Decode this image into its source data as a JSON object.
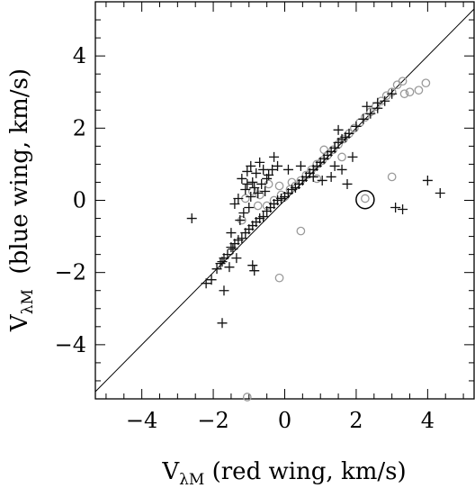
{
  "chart_data": {
    "type": "scatter",
    "xlabel": {
      "main": "V",
      "sub": "λM",
      "rest": " (red wing, km/s)"
    },
    "ylabel": {
      "main": "V",
      "sub": "λM",
      "rest": "  (blue wing, km/s)"
    },
    "xlim": [
      -5.3,
      5.3
    ],
    "ylim": [
      -5.5,
      5.5
    ],
    "x_ticks": [
      -4,
      -2,
      0,
      2,
      4
    ],
    "y_ticks": [
      -4,
      -2,
      0,
      2,
      4
    ],
    "x_tick_labels": [
      "−4",
      "−2",
      "0",
      "2",
      "4"
    ],
    "y_tick_labels": [
      "−4",
      "−2",
      "0",
      "2",
      "4"
    ],
    "minor_step": 0.5,
    "grid": false,
    "reference_line": {
      "slope": 1,
      "intercept": 0,
      "color": "#000000"
    },
    "highlight_circle": {
      "x": 2.25,
      "y": 0.02
    },
    "colors": {
      "plus": "#111111",
      "circle": "#9a9a9a"
    },
    "series": [
      {
        "marker": "plus",
        "points": [
          [
            -2.6,
            -0.5
          ],
          [
            -2.2,
            -2.3
          ],
          [
            -2.05,
            -2.2
          ],
          [
            -1.9,
            -1.9
          ],
          [
            -1.8,
            -1.75
          ],
          [
            -1.7,
            -1.6
          ],
          [
            -1.6,
            -1.5
          ],
          [
            -1.5,
            -1.3
          ],
          [
            -1.4,
            -1.2
          ],
          [
            -1.3,
            -1.1
          ],
          [
            -1.2,
            -1.05
          ],
          [
            -1.1,
            -0.9
          ],
          [
            -1.0,
            -0.8
          ],
          [
            -0.9,
            -0.7
          ],
          [
            -0.8,
            -0.6
          ],
          [
            -0.7,
            -0.5
          ],
          [
            -0.6,
            -0.45
          ],
          [
            -0.5,
            -0.3
          ],
          [
            -0.4,
            -0.2
          ],
          [
            -0.3,
            -0.1
          ],
          [
            -0.2,
            0.0
          ],
          [
            -0.1,
            0.05
          ],
          [
            0.0,
            0.1
          ],
          [
            0.1,
            0.2
          ],
          [
            0.2,
            0.3
          ],
          [
            0.3,
            0.35
          ],
          [
            0.4,
            0.45
          ],
          [
            0.5,
            0.55
          ],
          [
            0.6,
            0.65
          ],
          [
            0.7,
            0.75
          ],
          [
            0.8,
            0.85
          ],
          [
            0.9,
            0.95
          ],
          [
            1.0,
            1.05
          ],
          [
            1.1,
            1.15
          ],
          [
            1.2,
            1.25
          ],
          [
            1.3,
            1.35
          ],
          [
            1.4,
            1.45
          ],
          [
            1.5,
            1.6
          ],
          [
            1.6,
            1.7
          ],
          [
            1.7,
            1.75
          ],
          [
            1.8,
            1.85
          ],
          [
            2.0,
            2.05
          ],
          [
            2.2,
            2.25
          ],
          [
            2.4,
            2.4
          ],
          [
            2.6,
            2.55
          ],
          [
            2.8,
            2.75
          ],
          [
            3.0,
            2.95
          ],
          [
            -1.2,
            0.6
          ],
          [
            -1.05,
            0.8
          ],
          [
            -0.9,
            0.5
          ],
          [
            -1.1,
            0.3
          ],
          [
            -0.95,
            0.1
          ],
          [
            -0.8,
            0.75
          ],
          [
            -0.7,
            1.05
          ],
          [
            -0.6,
            0.85
          ],
          [
            -0.5,
            0.6
          ],
          [
            -1.3,
            0.05
          ],
          [
            -1.0,
            -0.2
          ],
          [
            -0.85,
            0.35
          ],
          [
            -0.75,
            0.2
          ],
          [
            -1.15,
            -0.35
          ],
          [
            -0.65,
            0.45
          ],
          [
            -0.55,
            0.25
          ],
          [
            -1.25,
            -0.55
          ],
          [
            -0.45,
            0.7
          ],
          [
            -0.95,
            0.95
          ],
          [
            -0.35,
            0.85
          ],
          [
            -1.05,
            0.45
          ],
          [
            -1.5,
            -0.9
          ],
          [
            -1.45,
            -1.35
          ],
          [
            -1.75,
            -1.7
          ],
          [
            -1.35,
            -1.6
          ],
          [
            -1.55,
            -1.85
          ],
          [
            -0.9,
            -1.8
          ],
          [
            -0.85,
            -1.95
          ],
          [
            -1.7,
            -2.5
          ],
          [
            -1.75,
            -3.4
          ],
          [
            -1.4,
            -0.1
          ],
          [
            -0.2,
            0.95
          ],
          [
            0.1,
            0.85
          ],
          [
            0.45,
            0.95
          ],
          [
            0.8,
            0.65
          ],
          [
            1.05,
            0.55
          ],
          [
            1.3,
            0.65
          ],
          [
            1.4,
            0.95
          ],
          [
            1.6,
            0.85
          ],
          [
            1.75,
            0.45
          ],
          [
            1.9,
            1.2
          ],
          [
            2.3,
            2.6
          ],
          [
            2.6,
            2.7
          ],
          [
            3.1,
            -0.2
          ],
          [
            3.3,
            -0.25
          ],
          [
            4.0,
            0.55
          ],
          [
            4.35,
            0.2
          ],
          [
            -0.3,
            1.2
          ],
          [
            1.5,
            1.95
          ]
        ]
      },
      {
        "marker": "circle",
        "points": [
          [
            -1.1,
            0.05
          ],
          [
            -0.9,
            0.25
          ],
          [
            -0.7,
            0.15
          ],
          [
            -1.2,
            -0.55
          ],
          [
            -0.75,
            -0.15
          ],
          [
            -0.5,
            -0.15
          ],
          [
            -0.3,
            0.0
          ],
          [
            -0.1,
            0.15
          ],
          [
            0.0,
            0.1
          ],
          [
            0.15,
            0.3
          ],
          [
            0.3,
            0.4
          ],
          [
            0.45,
            0.55
          ],
          [
            0.6,
            0.7
          ],
          [
            0.75,
            0.85
          ],
          [
            0.9,
            1.0
          ],
          [
            1.05,
            1.1
          ],
          [
            1.2,
            1.25
          ],
          [
            1.35,
            1.4
          ],
          [
            1.5,
            1.55
          ],
          [
            1.65,
            1.7
          ],
          [
            1.8,
            1.85
          ],
          [
            1.95,
            2.0
          ],
          [
            2.1,
            2.15
          ],
          [
            2.25,
            2.3
          ],
          [
            2.4,
            2.45
          ],
          [
            2.55,
            2.6
          ],
          [
            2.7,
            2.75
          ],
          [
            2.85,
            2.9
          ],
          [
            3.0,
            3.0
          ],
          [
            3.15,
            3.2
          ],
          [
            3.3,
            3.3
          ],
          [
            3.5,
            3.0
          ],
          [
            3.35,
            2.95
          ],
          [
            3.75,
            3.05
          ],
          [
            3.95,
            3.25
          ],
          [
            -0.15,
            0.4
          ],
          [
            0.45,
            -0.85
          ],
          [
            -0.15,
            -2.15
          ],
          [
            3.0,
            0.65
          ],
          [
            2.25,
            0.05
          ],
          [
            -1.05,
            -5.45
          ],
          [
            1.1,
            1.4
          ],
          [
            1.6,
            1.2
          ],
          [
            0.2,
            0.5
          ],
          [
            -0.45,
            0.45
          ],
          [
            0.9,
            0.6
          ]
        ]
      }
    ]
  }
}
